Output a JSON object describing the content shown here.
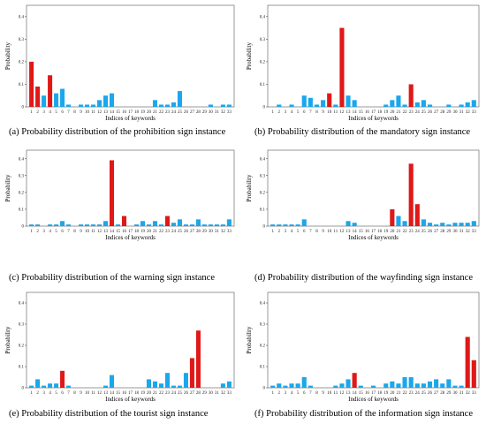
{
  "colors": {
    "highlight": "#e01818",
    "normal": "#1aa7ec"
  },
  "chart_data": [
    {
      "type": "bar",
      "caption": "(a) Probability distribution of the prohibition sign instance",
      "xlabel": "Indices of keywords",
      "ylabel": "Probability",
      "ylim": [
        0,
        0.45
      ],
      "yticks": [
        "0",
        "0.1",
        "0.2",
        "0.3",
        "0.4"
      ],
      "categories": [
        "1",
        "2",
        "3",
        "4",
        "5",
        "6",
        "7",
        "8",
        "9",
        "10",
        "11",
        "12",
        "13",
        "14",
        "15",
        "16",
        "17",
        "18",
        "19",
        "20",
        "21",
        "22",
        "23",
        "24",
        "25",
        "26",
        "27",
        "28",
        "29",
        "30",
        "31",
        "32",
        "33"
      ],
      "values": [
        0.2,
        0.09,
        0.05,
        0.14,
        0.06,
        0.08,
        0.01,
        0,
        0.01,
        0.01,
        0.01,
        0.03,
        0.05,
        0.06,
        0,
        0,
        0,
        0,
        0,
        0,
        0.03,
        0.01,
        0.01,
        0.02,
        0.07,
        0,
        0,
        0,
        0,
        0.01,
        0,
        0.01,
        0.01
      ],
      "highlighted": [
        1,
        2,
        4
      ]
    },
    {
      "type": "bar",
      "caption": "(b) Probability distribution of the mandatory sign instance",
      "xlabel": "Indices of keywords",
      "ylabel": "Probability",
      "ylim": [
        0,
        0.45
      ],
      "yticks": [
        "0",
        "0.1",
        "0.2",
        "0.3",
        "0.4"
      ],
      "categories": [
        "1",
        "2",
        "3",
        "4",
        "5",
        "6",
        "7",
        "8",
        "9",
        "10",
        "11",
        "12",
        "13",
        "14",
        "15",
        "16",
        "17",
        "18",
        "19",
        "20",
        "21",
        "22",
        "23",
        "24",
        "25",
        "26",
        "27",
        "28",
        "29",
        "30",
        "31",
        "32",
        "33"
      ],
      "values": [
        0,
        0.01,
        0,
        0.01,
        0,
        0.05,
        0.04,
        0.01,
        0.03,
        0.06,
        0.01,
        0.35,
        0.05,
        0.03,
        0,
        0,
        0,
        0,
        0.01,
        0.03,
        0.05,
        0.01,
        0.1,
        0.02,
        0.03,
        0.01,
        0,
        0,
        0.01,
        0,
        0.01,
        0.02,
        0.03
      ],
      "highlighted": [
        10,
        12,
        23
      ]
    },
    {
      "type": "bar",
      "caption": "(c) Probability distribution of the warning sign instance",
      "xlabel": "Indices of keywords",
      "ylabel": "Probability",
      "ylim": [
        0,
        0.45
      ],
      "yticks": [
        "0",
        "0.1",
        "0.2",
        "0.3",
        "0.4"
      ],
      "categories": [
        "1",
        "2",
        "3",
        "4",
        "5",
        "6",
        "7",
        "8",
        "9",
        "10",
        "11",
        "12",
        "13",
        "14",
        "15",
        "16",
        "17",
        "18",
        "19",
        "20",
        "21",
        "22",
        "23",
        "24",
        "25",
        "26",
        "27",
        "28",
        "29",
        "30",
        "31",
        "32",
        "33"
      ],
      "values": [
        0.01,
        0.01,
        0,
        0.01,
        0.01,
        0.03,
        0.01,
        0,
        0.01,
        0.01,
        0.01,
        0.01,
        0.03,
        0.39,
        0.01,
        0.06,
        0,
        0.01,
        0.03,
        0.01,
        0.03,
        0.01,
        0.06,
        0.02,
        0.04,
        0.01,
        0.01,
        0.04,
        0.01,
        0.01,
        0.01,
        0.01,
        0.04
      ],
      "highlighted": [
        14,
        16,
        23
      ]
    },
    {
      "type": "bar",
      "caption": "(d) Probability distribution of the wayfinding sign instance",
      "xlabel": "Indices of keywords",
      "ylabel": "Probability",
      "ylim": [
        0,
        0.45
      ],
      "yticks": [
        "0",
        "0.1",
        "0.2",
        "0.3",
        "0.4"
      ],
      "categories": [
        "1",
        "2",
        "3",
        "4",
        "5",
        "6",
        "7",
        "8",
        "9",
        "10",
        "11",
        "12",
        "13",
        "14",
        "15",
        "16",
        "17",
        "18",
        "19",
        "20",
        "21",
        "22",
        "23",
        "24",
        "25",
        "26",
        "27",
        "28",
        "29",
        "30",
        "31",
        "32",
        "33"
      ],
      "values": [
        0.01,
        0.01,
        0.01,
        0.01,
        0.01,
        0.04,
        0,
        0,
        0,
        0,
        0,
        0,
        0.03,
        0.02,
        0,
        0,
        0,
        0,
        0,
        0.1,
        0.06,
        0.03,
        0.37,
        0.13,
        0.04,
        0.02,
        0.01,
        0.02,
        0.01,
        0.02,
        0.02,
        0.02,
        0.03
      ],
      "highlighted": [
        20,
        23,
        24
      ]
    },
    {
      "type": "bar",
      "caption": "(e) Probability distribution of the tourist sign instance",
      "xlabel": "Indices of keywords",
      "ylabel": "Probability",
      "ylim": [
        0,
        0.45
      ],
      "yticks": [
        "0",
        "0.1",
        "0.2",
        "0.3",
        "0.4"
      ],
      "categories": [
        "1",
        "2",
        "3",
        "4",
        "5",
        "6",
        "7",
        "8",
        "9",
        "10",
        "11",
        "12",
        "13",
        "14",
        "15",
        "16",
        "17",
        "18",
        "19",
        "20",
        "21",
        "22",
        "23",
        "24",
        "25",
        "26",
        "27",
        "28",
        "29",
        "30",
        "31",
        "32",
        "33"
      ],
      "values": [
        0.01,
        0.04,
        0.01,
        0.02,
        0.02,
        0.08,
        0.01,
        0,
        0,
        0,
        0,
        0,
        0.01,
        0.06,
        0,
        0,
        0,
        0,
        0,
        0.04,
        0.03,
        0.02,
        0.07,
        0.01,
        0.01,
        0.07,
        0.14,
        0.27,
        0,
        0,
        0,
        0.02,
        0.03
      ],
      "highlighted": [
        6,
        27,
        28
      ]
    },
    {
      "type": "bar",
      "caption": "(f) Probability distribution of the information sign instance",
      "xlabel": "Indices of keywords",
      "ylabel": "Probability",
      "ylim": [
        0,
        0.45
      ],
      "yticks": [
        "0",
        "0.1",
        "0.2",
        "0.3",
        "0.4"
      ],
      "categories": [
        "1",
        "2",
        "3",
        "4",
        "5",
        "6",
        "7",
        "8",
        "9",
        "10",
        "11",
        "12",
        "13",
        "14",
        "15",
        "16",
        "17",
        "18",
        "19",
        "20",
        "21",
        "22",
        "23",
        "24",
        "25",
        "26",
        "27",
        "28",
        "29",
        "30",
        "31",
        "32",
        "33"
      ],
      "values": [
        0.01,
        0.02,
        0.01,
        0.02,
        0.02,
        0.05,
        0.01,
        0,
        0,
        0,
        0.01,
        0.02,
        0.04,
        0.07,
        0.01,
        0,
        0.01,
        0,
        0.02,
        0.03,
        0.02,
        0.05,
        0.05,
        0.02,
        0.02,
        0.03,
        0.04,
        0.02,
        0.04,
        0.01,
        0.01,
        0.24,
        0.13
      ],
      "highlighted": [
        14,
        32,
        33
      ]
    }
  ]
}
